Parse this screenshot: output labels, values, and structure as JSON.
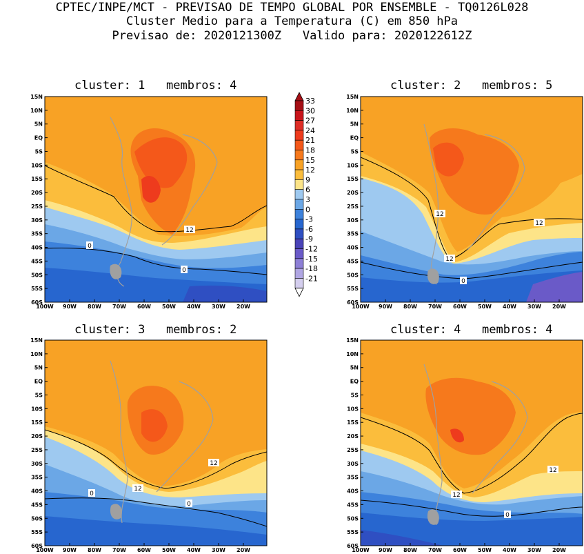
{
  "header": {
    "line1": "CPTEC/INPE/MCT - PREVISAO DE TEMPO GLOBAL POR ENSEMBLE - TQ0126L028",
    "line2": "Cluster Medio para a Temperatura (C) em 850 hPa",
    "line3": "Previsao de: 2020121300Z   Valido para: 2020122612Z"
  },
  "axes": {
    "lat_labels": [
      "15N",
      "10N",
      "5N",
      "EQ",
      "5S",
      "10S",
      "15S",
      "20S",
      "25S",
      "30S",
      "35S",
      "40S",
      "45S",
      "50S",
      "55S",
      "60S"
    ],
    "lon_labels": [
      "100W",
      "90W",
      "80W",
      "70W",
      "60W",
      "50W",
      "40W",
      "30W",
      "20W"
    ]
  },
  "colorbar": {
    "labels": [
      "33",
      "30",
      "27",
      "24",
      "21",
      "18",
      "15",
      "12",
      "9",
      "6",
      "3",
      "0",
      "-3",
      "-6",
      "-9",
      "-12",
      "-15",
      "-18",
      "-21"
    ],
    "colors": [
      "#a50f15",
      "#c8141b",
      "#de2d26",
      "#ee3b1d",
      "#f4581a",
      "#f6791c",
      "#f8a225",
      "#fbbd3c",
      "#fde488",
      "#9ec9f0",
      "#6ba7e6",
      "#3d82dc",
      "#2766cf",
      "#2f4fc2",
      "#4a43b8",
      "#6a5ac8",
      "#8d7fd6",
      "#b0a6e3",
      "#d4ceee"
    ]
  },
  "panels": [
    {
      "title": "cluster: 1   membros: 4",
      "contour_labels": [
        "12",
        "0",
        "0"
      ]
    },
    {
      "title": "cluster: 2   membros: 5",
      "contour_labels": [
        "12",
        "12",
        "12",
        "0"
      ]
    },
    {
      "title": "cluster: 3   membros: 2",
      "contour_labels": [
        "12",
        "12",
        "0",
        "0"
      ]
    },
    {
      "title": "cluster: 4   membros: 4",
      "contour_labels": [
        "12",
        "12",
        "0"
      ]
    }
  ]
}
